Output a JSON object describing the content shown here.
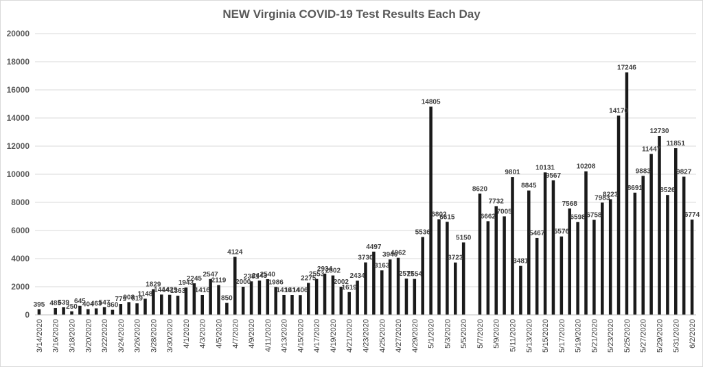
{
  "chart_data": {
    "type": "bar",
    "title": "NEW Virginia COVID-19 Test Results Each Day",
    "xlabel": "",
    "ylabel": "",
    "ylim": [
      0,
      20000
    ],
    "yticks": [
      0,
      2000,
      4000,
      6000,
      8000,
      10000,
      12000,
      14000,
      16000,
      18000,
      20000
    ],
    "grid": true,
    "legend": "none",
    "bar_color": "#1a1a1a",
    "grid_color": "#d9d9d9",
    "categories": [
      "3/14/2020",
      "3/15/2020",
      "3/16/2020",
      "3/17/2020",
      "3/18/2020",
      "3/19/2020",
      "3/20/2020",
      "3/21/2020",
      "3/22/2020",
      "3/23/2020",
      "3/24/2020",
      "3/25/2020",
      "3/26/2020",
      "3/27/2020",
      "3/28/2020",
      "3/29/2020",
      "3/30/2020",
      "3/31/2020",
      "4/1/2020",
      "4/2/2020",
      "4/3/2020",
      "4/4/2020",
      "4/5/2020",
      "4/6/2020",
      "4/7/2020",
      "4/8/2020",
      "4/9/2020",
      "4/10/2020",
      "4/11/2020",
      "4/12/2020",
      "4/13/2020",
      "4/14/2020",
      "4/15/2020",
      "4/16/2020",
      "4/17/2020",
      "4/18/2020",
      "4/19/2020",
      "4/20/2020",
      "4/21/2020",
      "4/22/2020",
      "4/23/2020",
      "4/24/2020",
      "4/25/2020",
      "4/26/2020",
      "4/27/2020",
      "4/28/2020",
      "4/29/2020",
      "4/30/2020",
      "5/1/2020",
      "5/2/2020",
      "5/3/2020",
      "5/4/2020",
      "5/5/2020",
      "5/6/2020",
      "5/7/2020",
      "5/8/2020",
      "5/9/2020",
      "5/10/2020",
      "5/11/2020",
      "5/12/2020",
      "5/13/2020",
      "5/14/2020",
      "5/15/2020",
      "5/16/2020",
      "5/17/2020",
      "5/18/2020",
      "5/19/2020",
      "5/20/2020",
      "5/21/2020",
      "5/22/2020",
      "5/23/2020",
      "5/24/2020",
      "5/25/2020",
      "5/26/2020",
      "5/27/2020",
      "5/28/2020",
      "5/29/2020",
      "5/30/2020",
      "5/31/2020",
      "6/1/2020",
      "6/2/2020"
    ],
    "x_tick_labels": [
      "3/14/2020",
      "3/16/2020",
      "3/18/2020",
      "3/20/2020",
      "3/22/2020",
      "3/24/2020",
      "3/26/2020",
      "3/28/2020",
      "3/30/2020",
      "4/1/2020",
      "4/3/2020",
      "4/5/2020",
      "4/7/2020",
      "4/9/2020",
      "4/11/2020",
      "4/13/2020",
      "4/15/2020",
      "4/17/2020",
      "4/19/2020",
      "4/21/2020",
      "4/23/2020",
      "4/25/2020",
      "4/27/2020",
      "4/29/2020",
      "5/1/2020",
      "5/3/2020",
      "5/5/2020",
      "5/7/2020",
      "5/9/2020",
      "5/11/2020",
      "5/13/2020",
      "5/15/2020",
      "5/17/2020",
      "5/19/2020",
      "5/21/2020",
      "5/23/2020",
      "5/25/2020",
      "5/27/2020",
      "5/29/2020",
      "5/31/2020",
      "6/2/2020"
    ],
    "values": [
      395,
      null,
      485,
      539,
      250,
      645,
      404,
      463,
      547,
      360,
      779,
      908,
      819,
      1148,
      1829,
      1444,
      1429,
      1363,
      1943,
      2245,
      1416,
      2547,
      2119,
      850,
      4124,
      2000,
      2381,
      2443,
      2540,
      1986,
      1416,
      1414,
      1406,
      2275,
      2553,
      2934,
      2802,
      2002,
      1619,
      2434,
      3730,
      4497,
      3163,
      3940,
      4062,
      2577,
      2554,
      5536,
      14805,
      6802,
      6615,
      3723,
      5150,
      null,
      8620,
      6662,
      7732,
      7005,
      9801,
      3481,
      8845,
      5467,
      10131,
      9567,
      5576,
      7568,
      6598,
      10208,
      6758,
      7983,
      8223,
      14170,
      17246,
      8691,
      9883,
      11447,
      12730,
      8526,
      11851,
      9827,
      6774
    ]
  }
}
